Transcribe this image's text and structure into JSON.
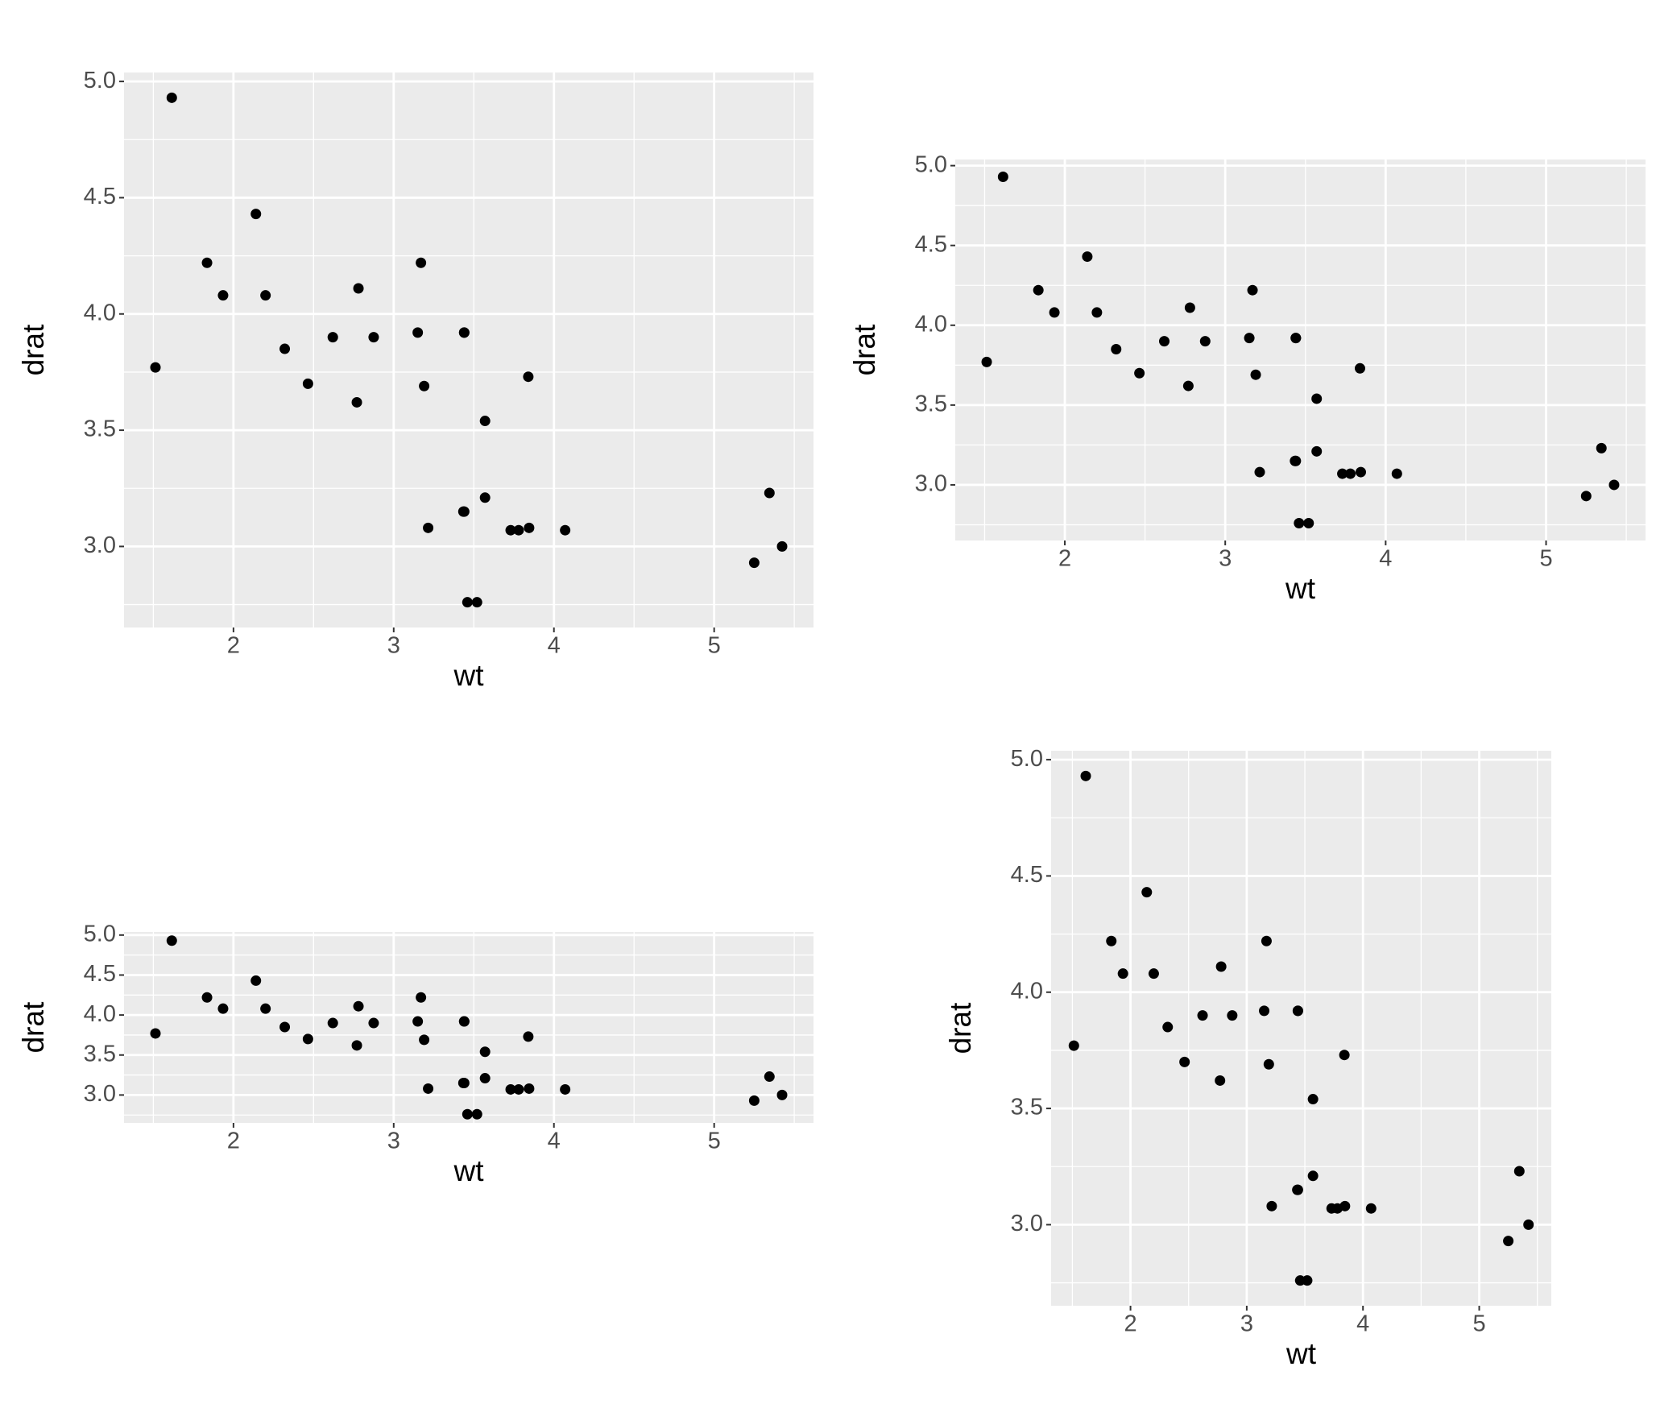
{
  "chart_data": [
    {
      "type": "scatter",
      "x_label": "wt",
      "y_label": "drat",
      "x": [
        2.62,
        2.875,
        2.32,
        3.215,
        3.44,
        3.46,
        3.57,
        3.19,
        3.15,
        3.44,
        3.44,
        4.07,
        3.73,
        3.78,
        5.25,
        5.424,
        5.345,
        2.2,
        1.615,
        1.835,
        2.465,
        3.52,
        3.435,
        3.84,
        3.845,
        1.935,
        2.14,
        1.513,
        3.17,
        2.77,
        3.57,
        2.78
      ],
      "values": [
        3.9,
        3.9,
        3.85,
        3.08,
        3.15,
        2.76,
        3.21,
        3.69,
        3.92,
        3.92,
        3.92,
        3.07,
        3.07,
        3.07,
        2.93,
        3.0,
        3.23,
        4.08,
        4.93,
        4.22,
        3.7,
        2.76,
        3.15,
        3.73,
        3.08,
        4.08,
        4.43,
        3.77,
        4.22,
        3.62,
        3.54,
        4.11
      ],
      "color": "#000000",
      "background": "#EBEBEB",
      "grid": true,
      "xlim": [
        1.317,
        5.62
      ],
      "ylim": [
        2.6515,
        5.0385
      ],
      "xticks": [
        2,
        3,
        4,
        5
      ],
      "yticks": [
        {
          "value": 3,
          "label": "3.0"
        },
        {
          "value": 3.5,
          "label": "3.5"
        },
        {
          "value": 4,
          "label": "4.0"
        },
        {
          "value": 4.5,
          "label": "4.5"
        },
        {
          "value": 5,
          "label": "5.0"
        }
      ]
    },
    {
      "type": "scatter",
      "x_label": "wt",
      "y_label": "drat",
      "x": [
        2.62,
        2.875,
        2.32,
        3.215,
        3.44,
        3.46,
        3.57,
        3.19,
        3.15,
        3.44,
        3.44,
        4.07,
        3.73,
        3.78,
        5.25,
        5.424,
        5.345,
        2.2,
        1.615,
        1.835,
        2.465,
        3.52,
        3.435,
        3.84,
        3.845,
        1.935,
        2.14,
        1.513,
        3.17,
        2.77,
        3.57,
        2.78
      ],
      "values": [
        3.9,
        3.9,
        3.85,
        3.08,
        3.15,
        2.76,
        3.21,
        3.69,
        3.92,
        3.92,
        3.92,
        3.07,
        3.07,
        3.07,
        2.93,
        3.0,
        3.23,
        4.08,
        4.93,
        4.22,
        3.7,
        2.76,
        3.15,
        3.73,
        3.08,
        4.08,
        4.43,
        3.77,
        4.22,
        3.62,
        3.54,
        4.11
      ],
      "color": "#000000",
      "background": "#EBEBEB",
      "grid": true,
      "xlim": [
        1.317,
        5.62
      ],
      "ylim": [
        2.6515,
        5.0385
      ],
      "xticks": [
        2,
        3,
        4,
        5
      ],
      "yticks": [
        {
          "value": 3,
          "label": "3.0"
        },
        {
          "value": 3.5,
          "label": "3.5"
        },
        {
          "value": 4,
          "label": "4.0"
        },
        {
          "value": 4.5,
          "label": "4.5"
        },
        {
          "value": 5,
          "label": "5.0"
        }
      ]
    },
    {
      "type": "scatter",
      "x_label": "wt",
      "y_label": "drat",
      "x": [
        2.62,
        2.875,
        2.32,
        3.215,
        3.44,
        3.46,
        3.57,
        3.19,
        3.15,
        3.44,
        3.44,
        4.07,
        3.73,
        3.78,
        5.25,
        5.424,
        5.345,
        2.2,
        1.615,
        1.835,
        2.465,
        3.52,
        3.435,
        3.84,
        3.845,
        1.935,
        2.14,
        1.513,
        3.17,
        2.77,
        3.57,
        2.78
      ],
      "values": [
        3.9,
        3.9,
        3.85,
        3.08,
        3.15,
        2.76,
        3.21,
        3.69,
        3.92,
        3.92,
        3.92,
        3.07,
        3.07,
        3.07,
        2.93,
        3.0,
        3.23,
        4.08,
        4.93,
        4.22,
        3.7,
        2.76,
        3.15,
        3.73,
        3.08,
        4.08,
        4.43,
        3.77,
        4.22,
        3.62,
        3.54,
        4.11
      ],
      "color": "#000000",
      "background": "#EBEBEB",
      "grid": true,
      "xlim": [
        1.317,
        5.62
      ],
      "ylim": [
        2.6515,
        5.0385
      ],
      "xticks": [
        2,
        3,
        4,
        5
      ],
      "yticks": [
        {
          "value": 3,
          "label": "3.0"
        },
        {
          "value": 3.5,
          "label": "3.5"
        },
        {
          "value": 4,
          "label": "4.0"
        },
        {
          "value": 4.5,
          "label": "4.5"
        },
        {
          "value": 5,
          "label": "5.0"
        }
      ]
    },
    {
      "type": "scatter",
      "x_label": "wt",
      "y_label": "drat",
      "x": [
        2.62,
        2.875,
        2.32,
        3.215,
        3.44,
        3.46,
        3.57,
        3.19,
        3.15,
        3.44,
        3.44,
        4.07,
        3.73,
        3.78,
        5.25,
        5.424,
        5.345,
        2.2,
        1.615,
        1.835,
        2.465,
        3.52,
        3.435,
        3.84,
        3.845,
        1.935,
        2.14,
        1.513,
        3.17,
        2.77,
        3.57,
        2.78
      ],
      "values": [
        3.9,
        3.9,
        3.85,
        3.08,
        3.15,
        2.76,
        3.21,
        3.69,
        3.92,
        3.92,
        3.92,
        3.07,
        3.07,
        3.07,
        2.93,
        3.0,
        3.23,
        4.08,
        4.93,
        4.22,
        3.7,
        2.76,
        3.15,
        3.73,
        3.08,
        4.08,
        4.43,
        3.77,
        4.22,
        3.62,
        3.54,
        4.11
      ],
      "color": "#000000",
      "background": "#EBEBEB",
      "grid": true,
      "xlim": [
        1.317,
        5.62
      ],
      "ylim": [
        2.6515,
        5.0385
      ],
      "xticks": [
        2,
        3,
        4,
        5
      ],
      "yticks": [
        {
          "value": 3,
          "label": "3.0"
        },
        {
          "value": 3.5,
          "label": "3.5"
        },
        {
          "value": 4,
          "label": "4.0"
        },
        {
          "value": 4.5,
          "label": "4.5"
        },
        {
          "value": 5,
          "label": "5.0"
        }
      ]
    }
  ]
}
